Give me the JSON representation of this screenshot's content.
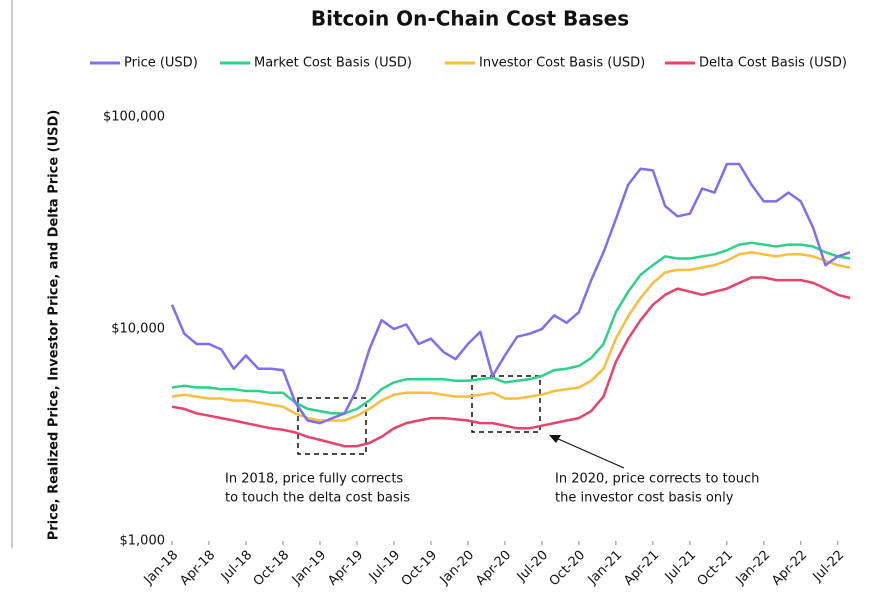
{
  "chart_data": {
    "type": "line",
    "title": "Bitcoin On-Chain Cost Bases",
    "y_label": "Price, Realized Price, Investor Price, and Delta Price (USD)",
    "log_y": true,
    "ylim": [
      1000,
      100000
    ],
    "yticks": [
      {
        "value": 1000,
        "label": "$1,000"
      },
      {
        "value": 10000,
        "label": "$10,000"
      },
      {
        "value": 100000,
        "label": "$100,000"
      }
    ],
    "x": [
      "2018-01",
      "2018-02",
      "2018-03",
      "2018-04",
      "2018-05",
      "2018-06",
      "2018-07",
      "2018-08",
      "2018-09",
      "2018-10",
      "2018-11",
      "2018-12",
      "2019-01",
      "2019-02",
      "2019-03",
      "2019-04",
      "2019-05",
      "2019-06",
      "2019-07",
      "2019-08",
      "2019-09",
      "2019-10",
      "2019-11",
      "2019-12",
      "2020-01",
      "2020-02",
      "2020-03",
      "2020-04",
      "2020-05",
      "2020-06",
      "2020-07",
      "2020-08",
      "2020-09",
      "2020-10",
      "2020-11",
      "2020-12",
      "2021-01",
      "2021-02",
      "2021-03",
      "2021-04",
      "2021-05",
      "2021-06",
      "2021-07",
      "2021-08",
      "2021-09",
      "2021-10",
      "2021-11",
      "2021-12",
      "2022-01",
      "2022-02",
      "2022-03",
      "2022-04",
      "2022-05",
      "2022-06",
      "2022-07",
      "2022-08"
    ],
    "xticks": [
      {
        "value": "2018-01",
        "label": "Jan-18"
      },
      {
        "value": "2018-04",
        "label": "Apr-18"
      },
      {
        "value": "2018-07",
        "label": "Jul-18"
      },
      {
        "value": "2018-10",
        "label": "Oct-18"
      },
      {
        "value": "2019-01",
        "label": "Jan-19"
      },
      {
        "value": "2019-04",
        "label": "Apr-19"
      },
      {
        "value": "2019-07",
        "label": "Jul-19"
      },
      {
        "value": "2019-10",
        "label": "Oct-19"
      },
      {
        "value": "2020-01",
        "label": "Jan-20"
      },
      {
        "value": "2020-04",
        "label": "Apr-20"
      },
      {
        "value": "2020-07",
        "label": "Jul-20"
      },
      {
        "value": "2020-10",
        "label": "Oct-20"
      },
      {
        "value": "2021-01",
        "label": "Jan-21"
      },
      {
        "value": "2021-04",
        "label": "Apr-21"
      },
      {
        "value": "2021-07",
        "label": "Jul-21"
      },
      {
        "value": "2021-10",
        "label": "Oct-21"
      },
      {
        "value": "2022-01",
        "label": "Jan-22"
      },
      {
        "value": "2022-04",
        "label": "Apr-22"
      },
      {
        "value": "2022-07",
        "label": "Jul-22"
      }
    ],
    "series": [
      {
        "name": "Price (USD)",
        "color": "#7f6ef2",
        "values": [
          13000,
          9500,
          8500,
          8500,
          8000,
          6500,
          7500,
          6500,
          6500,
          6400,
          4500,
          3700,
          3600,
          3800,
          4000,
          5200,
          8000,
          11000,
          10000,
          10500,
          8500,
          9000,
          7800,
          7200,
          8500,
          9700,
          6000,
          7500,
          9200,
          9500,
          10000,
          11600,
          10700,
          12000,
          17000,
          23000,
          33000,
          48000,
          57000,
          56000,
          38000,
          34000,
          35000,
          46000,
          44000,
          60000,
          60000,
          48000,
          40000,
          40000,
          44000,
          40000,
          30000,
          20000,
          22000,
          23000
        ]
      },
      {
        "name": "Market Cost Basis (USD)",
        "color": "#2fd18a",
        "values": [
          5300,
          5400,
          5300,
          5300,
          5200,
          5200,
          5100,
          5100,
          5000,
          5000,
          4500,
          4200,
          4100,
          4000,
          4000,
          4200,
          4600,
          5200,
          5600,
          5800,
          5800,
          5800,
          5800,
          5700,
          5700,
          5800,
          5900,
          5600,
          5700,
          5800,
          6000,
          6400,
          6500,
          6700,
          7300,
          8500,
          12000,
          15000,
          18000,
          20000,
          22000,
          21500,
          21500,
          22000,
          22500,
          23500,
          25000,
          25500,
          25000,
          24500,
          25000,
          25000,
          24500,
          23000,
          22000,
          21500
        ]
      },
      {
        "name": "Investor Cost Basis (USD)",
        "color": "#fbbd3c",
        "values": [
          4800,
          4900,
          4800,
          4700,
          4700,
          4600,
          4600,
          4500,
          4400,
          4300,
          4000,
          3800,
          3700,
          3700,
          3700,
          3900,
          4200,
          4600,
          4900,
          5000,
          5000,
          5000,
          4900,
          4800,
          4800,
          4900,
          5000,
          4700,
          4700,
          4800,
          4900,
          5100,
          5200,
          5300,
          5700,
          6500,
          9000,
          11500,
          14000,
          16500,
          18500,
          19000,
          19000,
          19500,
          20000,
          21000,
          22500,
          23000,
          22500,
          22000,
          22500,
          22500,
          22000,
          21000,
          20000,
          19500
        ]
      },
      {
        "name": "Delta Cost Basis (USD)",
        "color": "#e8436a",
        "values": [
          4300,
          4200,
          4000,
          3900,
          3800,
          3700,
          3600,
          3500,
          3400,
          3350,
          3250,
          3100,
          3000,
          2900,
          2800,
          2800,
          2900,
          3100,
          3400,
          3600,
          3700,
          3800,
          3800,
          3750,
          3700,
          3600,
          3600,
          3500,
          3400,
          3400,
          3500,
          3600,
          3700,
          3800,
          4100,
          4800,
          7000,
          9000,
          11000,
          13000,
          14500,
          15500,
          15000,
          14500,
          15000,
          15500,
          16500,
          17500,
          17500,
          17000,
          17000,
          17000,
          16500,
          15500,
          14500,
          14000
        ]
      }
    ],
    "annotations": [
      {
        "lines": [
          "In 2018, price fully corrects",
          "to touch the delta cost basis"
        ]
      },
      {
        "lines": [
          "In 2020, price corrects to touch",
          "the investor cost basis only"
        ]
      }
    ]
  }
}
